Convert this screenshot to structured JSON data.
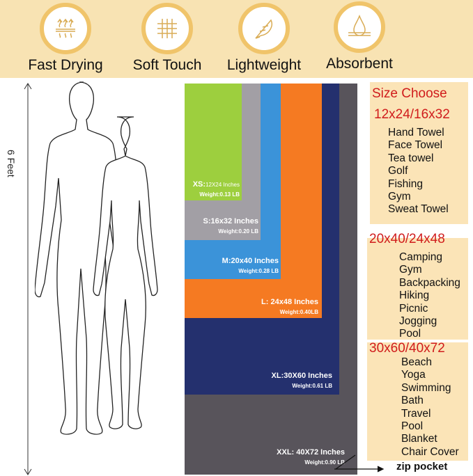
{
  "features": [
    {
      "label": "Fast Drying",
      "icon": "heat-waves-icon"
    },
    {
      "label": "Soft Touch",
      "icon": "fabric-weave-icon"
    },
    {
      "label": "Lightweight",
      "icon": "feather-icon"
    },
    {
      "label": "Absorbent",
      "icon": "water-drop-icon"
    }
  ],
  "height_label": "6 Feet",
  "towels": [
    {
      "size": "XS:",
      "dims": "12X24 Inches",
      "weight": "Weight:0.13 LB",
      "color": "#9dcf3e"
    },
    {
      "size": "S:",
      "dims": "16x32 Inches",
      "weight": "Weight:0.20 LB",
      "color": "#a29fa5"
    },
    {
      "size": "M:",
      "dims": "20x40 Inches",
      "weight": "Weight:0.28 LB",
      "color": "#3b93d9"
    },
    {
      "size": "L: ",
      "dims": "24x48 Inches",
      "weight": "Weight:0.40LB",
      "color": "#f57a22"
    },
    {
      "size": "XL:",
      "dims": "30X60 Inches",
      "weight": "Weight:0.61 LB",
      "color": "#24306e"
    },
    {
      "size": "XXL: ",
      "dims": "40X72 Inches",
      "weight": "Weight:0.90 LB",
      "color": "#58545b"
    }
  ],
  "zip_pocket": "zip pocket",
  "size_choose": {
    "title": "Size Choose",
    "groups": [
      {
        "sizes": "12x24/16x32",
        "uses": [
          "Hand Towel",
          "Face Towel",
          "Tea towel",
          "Golf",
          "Fishing",
          "Gym",
          "Sweat Towel"
        ]
      },
      {
        "sizes": "20x40/24x48",
        "uses": [
          "Camping",
          "Gym",
          "Backpacking",
          "Hiking",
          "Picnic",
          "Jogging",
          "Pool"
        ]
      },
      {
        "sizes": "30x60/40x72",
        "uses": [
          "Beach",
          "Yoga",
          "Swimming",
          "Bath",
          "Travel",
          "Pool",
          "Blanket",
          "Chair Cover"
        ]
      }
    ]
  }
}
